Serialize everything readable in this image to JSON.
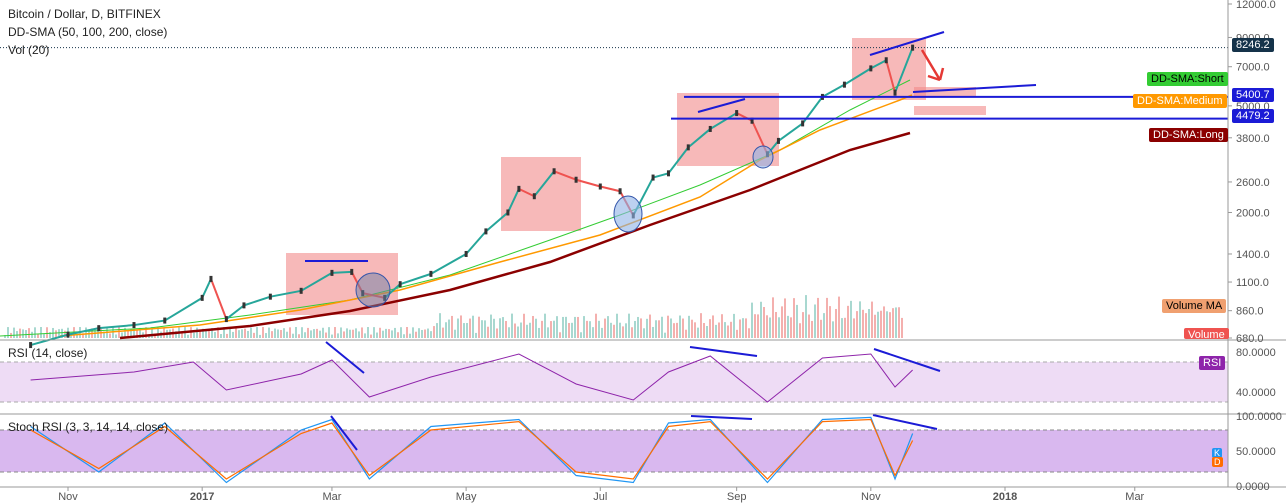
{
  "header": {
    "symbol_line": "Bitcoin / Dollar, D, BITFINEX",
    "indicator_line": "DD-SMA (50, 100, 200, close)",
    "volume_line": "Vol (20)"
  },
  "rsi_panel": {
    "title": "RSI (14, close)",
    "badge": "RSI"
  },
  "stoch_panel": {
    "title": "Stoch RSI (3, 3, 14, 14, close)",
    "badge_k": "K",
    "badge_d": "D"
  },
  "tags": {
    "price_last": "8246.2",
    "level_high": "5400.7",
    "level_low": "4479.2",
    "sma_short": "DD-SMA:Short",
    "sma_medium": "DD-SMA:Medium",
    "sma_long": "DD-SMA:Long",
    "volume_ma": "Volume MA",
    "volume": "Volume"
  },
  "colors": {
    "price_up": "#26a69a",
    "price_down": "#ef5350",
    "sma_short": "#33cc33",
    "sma_medium": "#ff9900",
    "sma_long": "#8b0000",
    "rsi_line": "#8e24aa",
    "rsi_band": "#eedcf5",
    "stoch_k": "#2196f3",
    "stoch_d": "#ff6d00",
    "trendline": "#1b1bd6",
    "highlight_box": "#f28b8b",
    "arrow": "#e53935"
  },
  "chart_data": [
    {
      "type": "line",
      "name": "price",
      "yscale": "log",
      "ylim": [
        680,
        12000
      ],
      "x_ticks": [
        "Nov",
        "2017",
        "Mar",
        "May",
        "Jul",
        "Sep",
        "Nov",
        "2018",
        "Mar"
      ],
      "y_ticks": [
        12000,
        9000,
        7000,
        5400,
        5000,
        3800,
        2600,
        2000,
        1400,
        1100,
        860,
        680
      ],
      "x": [
        "2016-10-15",
        "2016-11-01",
        "2016-11-15",
        "2016-12-01",
        "2016-12-15",
        "2017-01-01",
        "2017-01-05",
        "2017-01-12",
        "2017-01-20",
        "2017-02-01",
        "2017-02-15",
        "2017-03-01",
        "2017-03-10",
        "2017-03-15",
        "2017-03-25",
        "2017-04-01",
        "2017-04-15",
        "2017-05-01",
        "2017-05-10",
        "2017-05-20",
        "2017-05-25",
        "2017-06-01",
        "2017-06-10",
        "2017-06-20",
        "2017-07-01",
        "2017-07-10",
        "2017-07-16",
        "2017-07-25",
        "2017-08-01",
        "2017-08-10",
        "2017-08-20",
        "2017-09-01",
        "2017-09-08",
        "2017-09-15",
        "2017-09-20",
        "2017-10-01",
        "2017-10-10",
        "2017-10-20",
        "2017-11-01",
        "2017-11-08",
        "2017-11-12",
        "2017-11-20"
      ],
      "series": [
        {
          "values": [
            640,
            700,
            740,
            760,
            790,
            960,
            1130,
            800,
            900,
            970,
            1020,
            1190,
            1200,
            1000,
            960,
            1080,
            1180,
            1400,
            1700,
            2000,
            2450,
            2300,
            2850,
            2650,
            2500,
            2400,
            1950,
            2700,
            2800,
            3500,
            4100,
            4700,
            4400,
            3300,
            3700,
            4300,
            5400,
            6000,
            6900,
            7400,
            5600,
            8246.2
          ]
        }
      ],
      "horizontal_levels": [
        5400.7,
        4479.2
      ],
      "last_value": 8246.2
    },
    {
      "type": "line",
      "name": "RSI (14, close)",
      "ylim": [
        20,
        90
      ],
      "y_ticks": [
        80,
        40
      ],
      "band": [
        30,
        70
      ],
      "x": [
        "2016-10-15",
        "2016-12-01",
        "2016-12-28",
        "2017-01-12",
        "2017-02-15",
        "2017-03-01",
        "2017-03-18",
        "2017-04-15",
        "2017-05-25",
        "2017-06-20",
        "2017-07-16",
        "2017-08-01",
        "2017-08-20",
        "2017-09-15",
        "2017-10-10",
        "2017-11-01",
        "2017-11-12",
        "2017-11-20"
      ],
      "values": [
        52,
        60,
        70,
        42,
        58,
        72,
        35,
        55,
        78,
        48,
        32,
        60,
        76,
        30,
        74,
        78,
        45,
        62
      ]
    },
    {
      "type": "line",
      "name": "Stoch RSI (3, 3, 14, 14, close)",
      "ylim": [
        0,
        100
      ],
      "y_ticks": [
        100,
        50,
        0
      ],
      "band": [
        20,
        80
      ],
      "x": [
        "2016-10-15",
        "2016-11-15",
        "2016-12-15",
        "2017-01-12",
        "2017-02-15",
        "2017-03-01",
        "2017-03-18",
        "2017-04-15",
        "2017-05-25",
        "2017-06-20",
        "2017-07-16",
        "2017-08-01",
        "2017-08-20",
        "2017-09-15",
        "2017-10-10",
        "2017-11-01",
        "2017-11-12",
        "2017-11-20"
      ],
      "series": [
        {
          "name": "K",
          "values": [
            85,
            20,
            90,
            5,
            80,
            95,
            10,
            85,
            95,
            15,
            5,
            90,
            95,
            5,
            95,
            98,
            10,
            75
          ]
        },
        {
          "name": "D",
          "values": [
            80,
            25,
            85,
            10,
            75,
            90,
            15,
            80,
            92,
            20,
            10,
            85,
            92,
            10,
            92,
            95,
            15,
            65
          ]
        }
      ]
    }
  ]
}
